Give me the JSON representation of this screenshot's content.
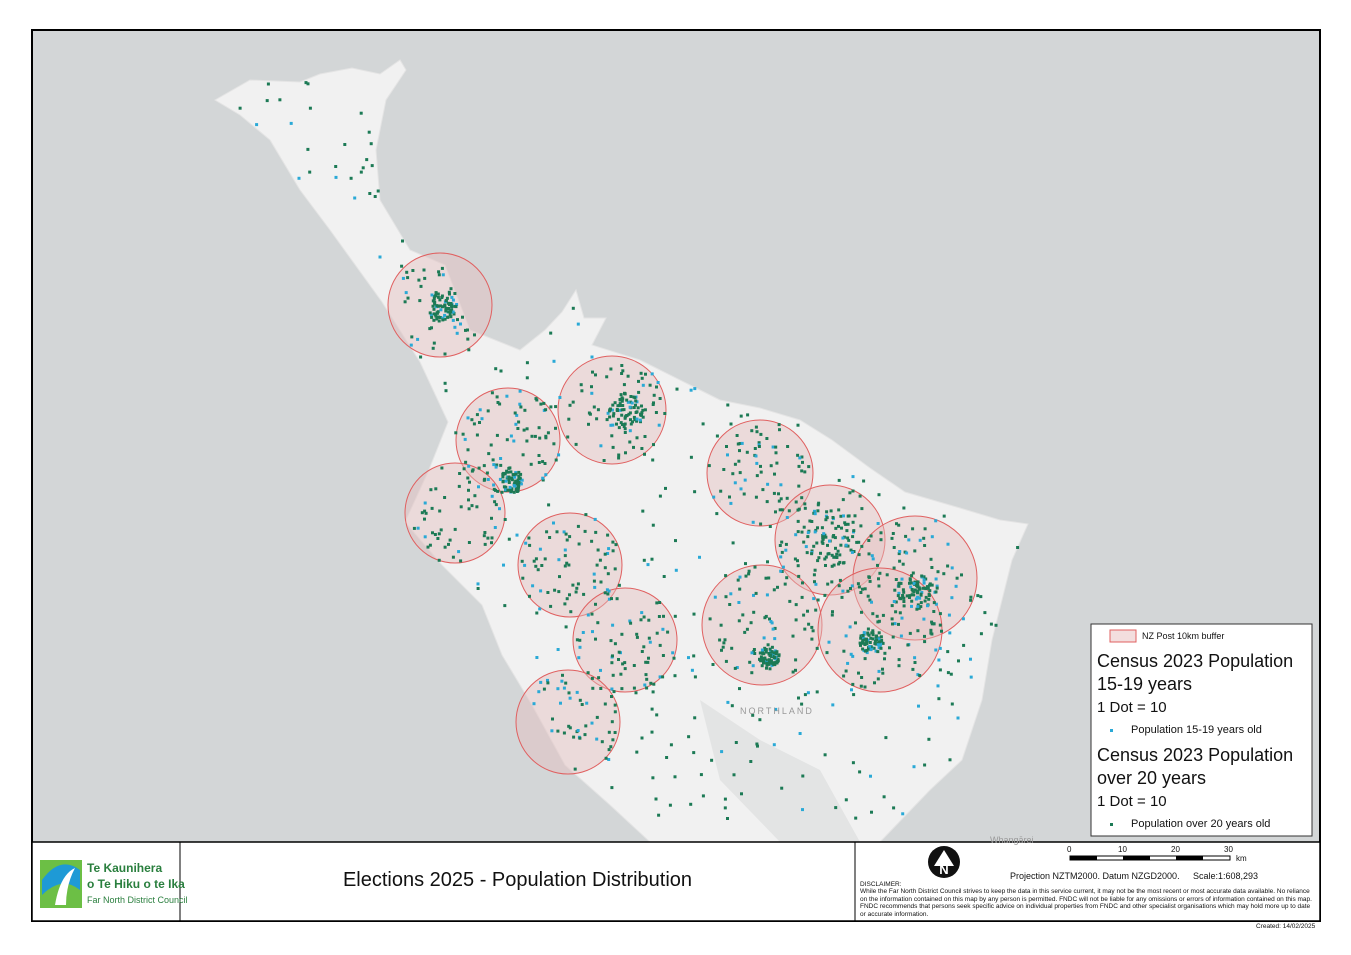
{
  "map": {
    "labels": [
      "NORTHLAND",
      "Whangārei"
    ]
  },
  "legend": {
    "buffer": "NZ Post 10km buffer",
    "groups": [
      {
        "title": "Census 2023 Population 15-19 years",
        "dot": "1 Dot = 10",
        "item": "Population 15-19 years old"
      },
      {
        "title": "Census 2023 Population over 20 years",
        "dot": "1 Dot = 10",
        "item": "Population over 20 years old"
      }
    ]
  },
  "footer": {
    "logo": [
      "Te Kaunihera",
      "o Te Hiku o te Ika",
      "Far North District Council"
    ],
    "title": "Elections 2025 - Population Distribution",
    "scale_bar": {
      "ticks": [
        "0",
        "10",
        "20",
        "30"
      ],
      "unit": "km"
    },
    "projection": "Projection NZTM2000. Datum NZGD2000.",
    "scale": "Scale:1:608,293",
    "disclaimer_heading": "DISCLAIMER:",
    "disclaimer": "While the Far North District Council strives to keep the data in this service current, it may not be the most recent or most accurate data available. No reliance on the information contained on this map by any person is permitted. FNDC will not be liable for any omissions or errors of information contained on this map.  FNDC recommends that persons seek specific advice on individual properties from FNDC and other specialist organisations which may hold more up to date or accurate information.",
    "created": "Created: 14/02/2025"
  }
}
